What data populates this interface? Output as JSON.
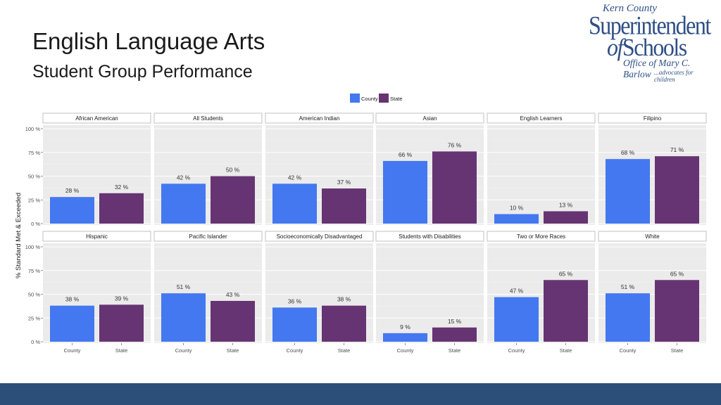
{
  "slide": {
    "title": "English Language Arts",
    "subtitle": "Student Group Performance"
  },
  "logo": {
    "kern": "Kern County",
    "superintendent": "Superintendent",
    "of": "of",
    "schools": "Schools",
    "office": "Office of Mary C. Barlow",
    "tagline": "...advocates for children"
  },
  "colors": {
    "county": "#4378f0",
    "state": "#673473",
    "panel_bg": "#ebebeb",
    "strip_bg": "#ffffff",
    "footer": "#2b4f78"
  },
  "chart_data": {
    "type": "bar",
    "categories": [
      "County",
      "State"
    ],
    "ylabel": "% Standard Met & Exceeded",
    "xlabel": "",
    "ylim": [
      0,
      100
    ],
    "yticks": [
      "0 %",
      "25 %",
      "50 %",
      "75 %",
      "100 %"
    ],
    "legend": {
      "position": "top",
      "entries": [
        "County",
        "State"
      ]
    },
    "grid": true,
    "panels": [
      {
        "group": "African American",
        "values": [
          28,
          32
        ],
        "labels": [
          "28 %",
          "32 %"
        ]
      },
      {
        "group": "All Students",
        "values": [
          42,
          50
        ],
        "labels": [
          "42 %",
          "50 %"
        ]
      },
      {
        "group": "American Indian",
        "values": [
          42,
          37
        ],
        "labels": [
          "42 %",
          "37 %"
        ]
      },
      {
        "group": "Asian",
        "values": [
          66,
          76
        ],
        "labels": [
          "66 %",
          "76 %"
        ]
      },
      {
        "group": "English Learners",
        "values": [
          10,
          13
        ],
        "labels": [
          "10 %",
          "13 %"
        ]
      },
      {
        "group": "Filipino",
        "values": [
          68,
          71
        ],
        "labels": [
          "68 %",
          "71 %"
        ]
      },
      {
        "group": "Hispanic",
        "values": [
          38,
          39
        ],
        "labels": [
          "38 %",
          "39 %"
        ]
      },
      {
        "group": "Pacific Islander",
        "values": [
          51,
          43
        ],
        "labels": [
          "51 %",
          "43 %"
        ]
      },
      {
        "group": "Socioeconomically Disadvantaged",
        "values": [
          36,
          38
        ],
        "labels": [
          "36 %",
          "38 %"
        ]
      },
      {
        "group": "Students with Disabilities",
        "values": [
          9,
          15
        ],
        "labels": [
          "9 %",
          "15 %"
        ]
      },
      {
        "group": "Two or More Races",
        "values": [
          47,
          65
        ],
        "labels": [
          "47 %",
          "65 %"
        ]
      },
      {
        "group": "White",
        "values": [
          51,
          65
        ],
        "labels": [
          "51 %",
          "65 %"
        ]
      }
    ]
  }
}
